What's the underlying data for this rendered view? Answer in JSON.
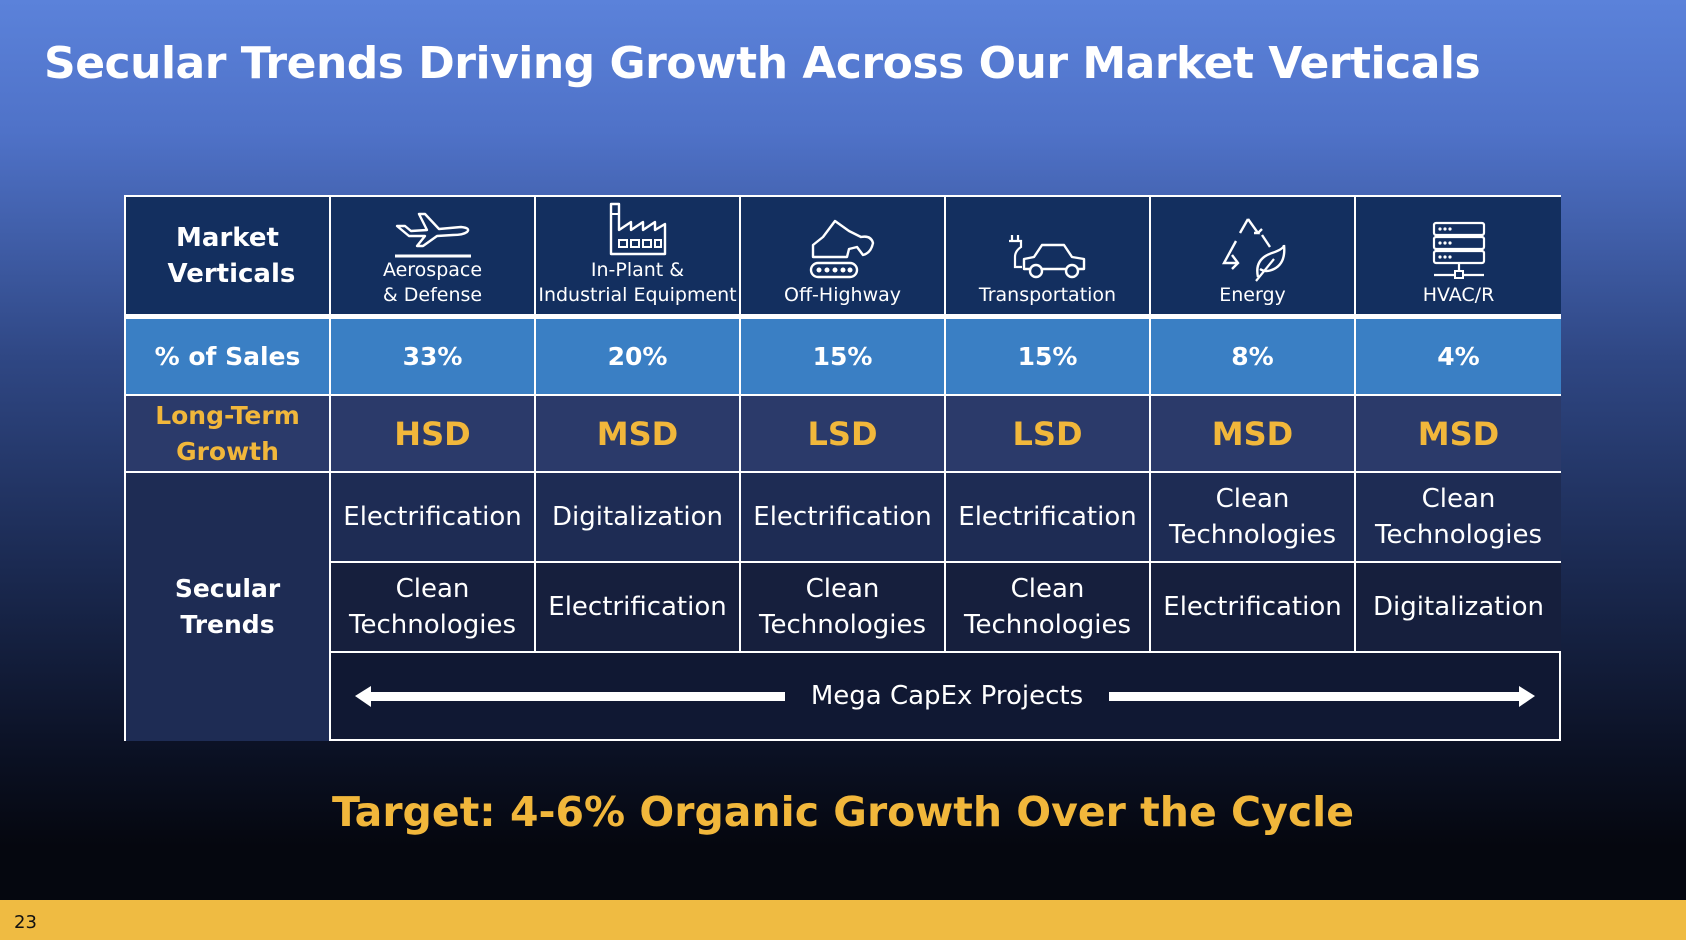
{
  "title": "Secular Trends Driving Growth Across Our Market Verticals",
  "header": {
    "market_verticals_label": "Market Verticals",
    "verticals": [
      {
        "name_line1": "Aerospace",
        "name_line2": "& Defense",
        "icon": "airplane-icon"
      },
      {
        "name_line1": "In-Plant &",
        "name_line2": "Industrial Equipment",
        "icon": "factory-icon"
      },
      {
        "name_line1": "Off-Highway",
        "name_line2": "",
        "icon": "excavator-icon"
      },
      {
        "name_line1": "Transportation",
        "name_line2": "",
        "icon": "electric-car-icon"
      },
      {
        "name_line1": "Energy",
        "name_line2": "",
        "icon": "recycle-leaf-icon"
      },
      {
        "name_line1": "HVAC/R",
        "name_line2": "",
        "icon": "server-icon"
      }
    ]
  },
  "sales": {
    "label": "% of Sales",
    "values": [
      "33%",
      "20%",
      "15%",
      "15%",
      "8%",
      "4%"
    ]
  },
  "growth": {
    "label_line1": "Long-Term",
    "label_line2": "Growth",
    "values": [
      "HSD",
      "MSD",
      "LSD",
      "LSD",
      "MSD",
      "MSD"
    ]
  },
  "trends": {
    "label_line1": "Secular",
    "label_line2": "Trends",
    "row1": [
      {
        "line1": "Electrification",
        "line2": ""
      },
      {
        "line1": "Digitalization",
        "line2": ""
      },
      {
        "line1": "Electrification",
        "line2": ""
      },
      {
        "line1": "Electrification",
        "line2": ""
      },
      {
        "line1": "Clean",
        "line2": "Technologies"
      },
      {
        "line1": "Clean",
        "line2": "Technologies"
      }
    ],
    "row2": [
      {
        "line1": "Clean",
        "line2": "Technologies"
      },
      {
        "line1": "Electrification",
        "line2": ""
      },
      {
        "line1": "Clean",
        "line2": "Technologies"
      },
      {
        "line1": "Clean",
        "line2": "Technologies"
      },
      {
        "line1": "Electrification",
        "line2": ""
      },
      {
        "line1": "Digitalization",
        "line2": ""
      }
    ],
    "capex_label": "Mega CapEx Projects"
  },
  "target": "Target: 4-6% Organic Growth Over the Cycle",
  "page_number": "23"
}
